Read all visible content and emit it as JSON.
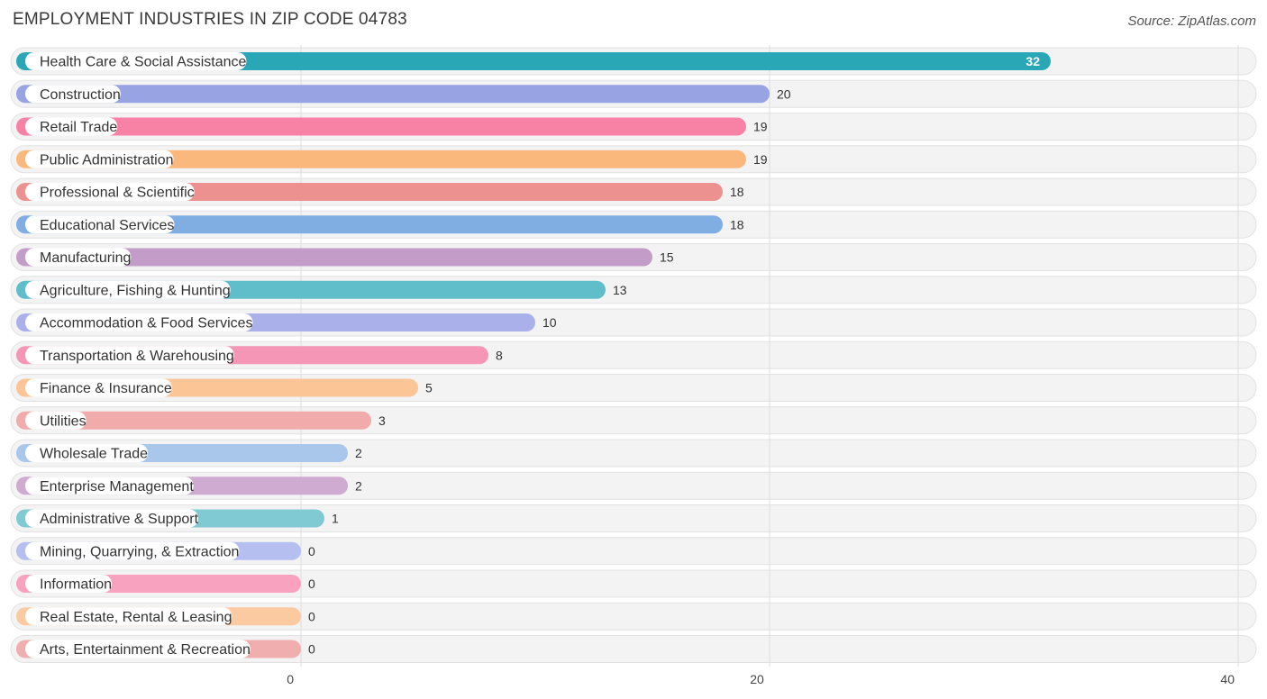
{
  "header": {
    "title": "EMPLOYMENT INDUSTRIES IN ZIP CODE 04783",
    "source": "Source: ZipAtlas.com"
  },
  "chart_data": {
    "type": "bar",
    "orientation": "horizontal",
    "title": "EMPLOYMENT INDUSTRIES IN ZIP CODE 04783",
    "xlabel": "",
    "ylabel": "",
    "xlim": [
      0,
      40
    ],
    "ticks": [
      0,
      20,
      40
    ],
    "grid": true,
    "categories": [
      "Health Care & Social Assistance",
      "Construction",
      "Retail Trade",
      "Public Administration",
      "Professional & Scientific",
      "Educational Services",
      "Manufacturing",
      "Agriculture, Fishing & Hunting",
      "Accommodation & Food Services",
      "Transportation & Warehousing",
      "Finance & Insurance",
      "Utilities",
      "Wholesale Trade",
      "Enterprise Management",
      "Administrative & Support",
      "Mining, Quarrying, & Extraction",
      "Information",
      "Real Estate, Rental & Leasing",
      "Arts, Entertainment & Recreation"
    ],
    "values": [
      32,
      20,
      19,
      19,
      18,
      18,
      15,
      13,
      10,
      8,
      5,
      3,
      2,
      2,
      1,
      0,
      0,
      0,
      0
    ],
    "colors": [
      "#2aa7b6",
      "#97a3e2",
      "#f882a5",
      "#fbb87c",
      "#ec918f",
      "#80aee3",
      "#c39cc8",
      "#5fbec9",
      "#a9b0ea",
      "#f596b7",
      "#fbc595",
      "#f0abaa",
      "#a8c7ea",
      "#cfabd2",
      "#80cad3",
      "#b5bff0",
      "#f8a2bf",
      "#fbcaa1",
      "#f1aeae"
    ]
  }
}
